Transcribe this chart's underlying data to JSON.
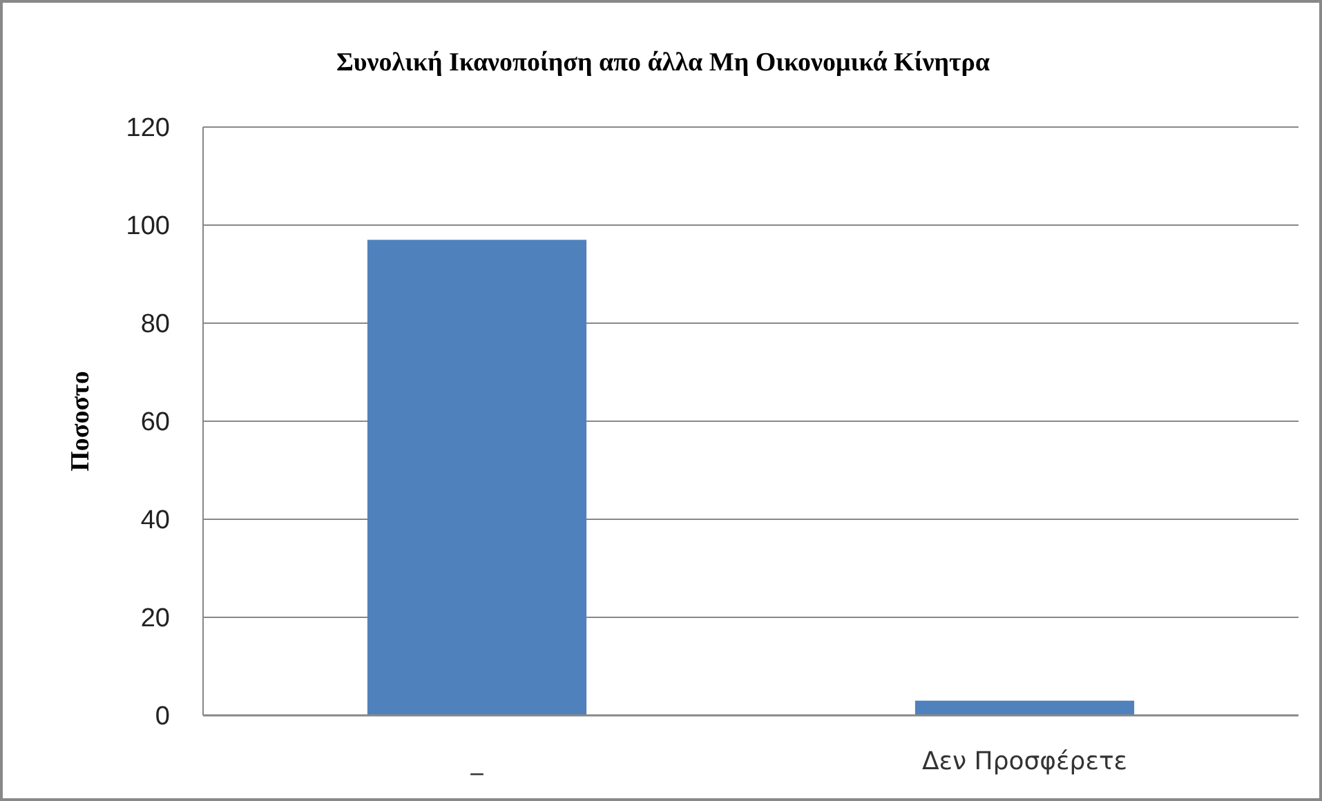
{
  "chart_data": {
    "type": "bar",
    "title": "Συνολική Ικανοποίηση απο άλλα Μη Οικονομικά Κίνητρα",
    "ylabel": "Ποσοστο",
    "categories": [
      "_",
      "Δεν Προσφέρετε"
    ],
    "values": [
      97,
      3
    ],
    "color": "#4f81bd",
    "ylim": [
      0,
      120
    ],
    "yticks": [
      0,
      20,
      40,
      60,
      80,
      100,
      120
    ],
    "grid": "y"
  }
}
